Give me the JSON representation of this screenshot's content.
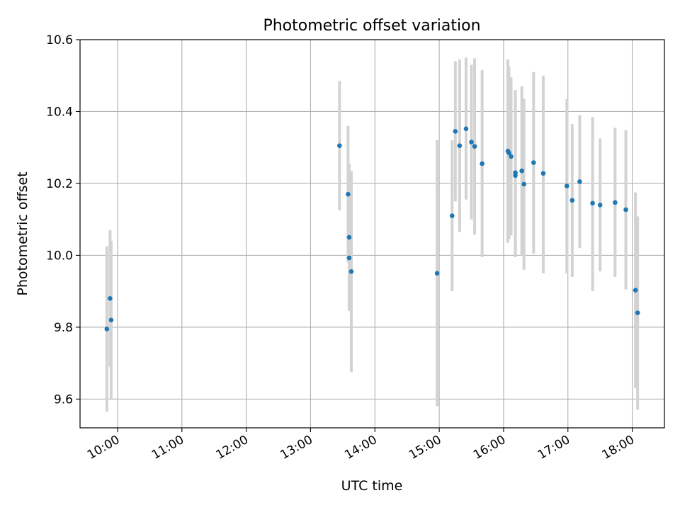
{
  "chart_data": {
    "type": "scatter",
    "title": "Photometric offset variation",
    "xlabel": "UTC time",
    "ylabel": "Photometric offset",
    "x_ticks": [
      "10:00",
      "11:00",
      "12:00",
      "13:00",
      "14:00",
      "15:00",
      "16:00",
      "17:00",
      "18:00"
    ],
    "y_ticks": [
      "9.6",
      "9.8",
      "10.0",
      "10.2",
      "10.4",
      "10.6"
    ],
    "xlim": [
      "09:25",
      "18:30"
    ],
    "ylim": [
      9.52,
      10.6
    ],
    "grid": true,
    "colors": {
      "point": "#1f77b4",
      "errorbar": "#d3d3d3",
      "grid": "#b0b0b0"
    },
    "points": [
      {
        "t": "09:50",
        "y": 9.795,
        "lo": 9.565,
        "hi": 10.025
      },
      {
        "t": "09:53",
        "y": 9.88,
        "lo": 9.69,
        "hi": 10.07
      },
      {
        "t": "09:54",
        "y": 9.82,
        "lo": 9.6,
        "hi": 10.04
      },
      {
        "t": "13:27",
        "y": 10.305,
        "lo": 10.125,
        "hi": 10.485
      },
      {
        "t": "13:35",
        "y": 10.17,
        "lo": 9.98,
        "hi": 10.36
      },
      {
        "t": "13:36",
        "y": 10.05,
        "lo": 9.845,
        "hi": 10.255
      },
      {
        "t": "13:36",
        "y": 9.993,
        "lo": 9.85,
        "hi": 10.14
      },
      {
        "t": "13:38",
        "y": 9.955,
        "lo": 9.675,
        "hi": 10.235
      },
      {
        "t": "14:58",
        "y": 9.95,
        "lo": 9.58,
        "hi": 10.32
      },
      {
        "t": "15:12",
        "y": 10.11,
        "lo": 9.9,
        "hi": 10.32
      },
      {
        "t": "15:15",
        "y": 10.345,
        "lo": 10.15,
        "hi": 10.54
      },
      {
        "t": "15:19",
        "y": 10.305,
        "lo": 10.065,
        "hi": 10.545
      },
      {
        "t": "15:25",
        "y": 10.352,
        "lo": 10.155,
        "hi": 10.55
      },
      {
        "t": "15:30",
        "y": 10.315,
        "lo": 10.1,
        "hi": 10.53
      },
      {
        "t": "15:33",
        "y": 10.303,
        "lo": 10.058,
        "hi": 10.548
      },
      {
        "t": "15:40",
        "y": 10.255,
        "lo": 9.995,
        "hi": 10.515
      },
      {
        "t": "16:04",
        "y": 10.29,
        "lo": 10.035,
        "hi": 10.545
      },
      {
        "t": "16:05",
        "y": 10.285,
        "lo": 10.045,
        "hi": 10.525
      },
      {
        "t": "16:07",
        "y": 10.275,
        "lo": 10.055,
        "hi": 10.495
      },
      {
        "t": "16:11",
        "y": 10.23,
        "lo": 9.995,
        "hi": 10.46
      },
      {
        "t": "16:11",
        "y": 10.222,
        "lo": 10.0,
        "hi": 10.445
      },
      {
        "t": "16:17",
        "y": 10.235,
        "lo": 10.0,
        "hi": 10.47
      },
      {
        "t": "16:19",
        "y": 10.198,
        "lo": 9.96,
        "hi": 10.435
      },
      {
        "t": "16:28",
        "y": 10.258,
        "lo": 10.005,
        "hi": 10.51
      },
      {
        "t": "16:37",
        "y": 10.228,
        "lo": 9.95,
        "hi": 10.5
      },
      {
        "t": "16:59",
        "y": 10.193,
        "lo": 9.95,
        "hi": 10.435
      },
      {
        "t": "17:04",
        "y": 10.153,
        "lo": 9.94,
        "hi": 10.365
      },
      {
        "t": "17:11",
        "y": 10.205,
        "lo": 10.02,
        "hi": 10.39
      },
      {
        "t": "17:23",
        "y": 10.145,
        "lo": 9.9,
        "hi": 10.385
      },
      {
        "t": "17:30",
        "y": 10.14,
        "lo": 9.955,
        "hi": 10.325
      },
      {
        "t": "17:44",
        "y": 10.147,
        "lo": 9.94,
        "hi": 10.355
      },
      {
        "t": "17:54",
        "y": 10.127,
        "lo": 9.905,
        "hi": 10.348
      },
      {
        "t": "18:03",
        "y": 9.903,
        "lo": 9.63,
        "hi": 10.175
      },
      {
        "t": "18:05",
        "y": 9.84,
        "lo": 9.57,
        "hi": 10.108
      }
    ]
  }
}
